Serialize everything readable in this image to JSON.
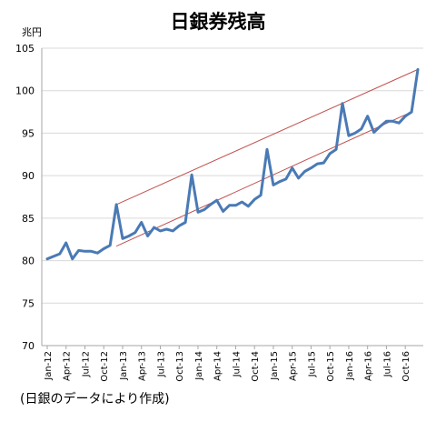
{
  "title": "日銀券残高",
  "unit_label": "兆円",
  "source_note": "(日銀のデータにより作成)",
  "chart_data": {
    "type": "line",
    "title": "日銀券残高",
    "ylabel": "兆円",
    "xlabel": "",
    "ylim": [
      70,
      105
    ],
    "yticks": [
      70,
      75,
      80,
      85,
      90,
      95,
      100,
      105
    ],
    "grid": true,
    "legend": "none",
    "x_tick_labels": [
      "Jan-12",
      "Apr-12",
      "Jul-12",
      "Oct-12",
      "Jan-13",
      "Apr-13",
      "Jul-13",
      "Oct-13",
      "Jan-14",
      "Apr-14",
      "Jul-14",
      "Oct-14",
      "Jan-15",
      "Apr-15",
      "Jul-15",
      "Oct-15",
      "Jan-16",
      "Apr-16",
      "Jul-16",
      "Oct-16"
    ],
    "x": [
      "Jan-12",
      "Feb-12",
      "Mar-12",
      "Apr-12",
      "May-12",
      "Jun-12",
      "Jul-12",
      "Aug-12",
      "Sep-12",
      "Oct-12",
      "Nov-12",
      "Dec-12",
      "Jan-13",
      "Feb-13",
      "Mar-13",
      "Apr-13",
      "May-13",
      "Jun-13",
      "Jul-13",
      "Aug-13",
      "Sep-13",
      "Oct-13",
      "Nov-13",
      "Dec-13",
      "Jan-14",
      "Feb-14",
      "Mar-14",
      "Apr-14",
      "May-14",
      "Jun-14",
      "Jul-14",
      "Aug-14",
      "Sep-14",
      "Oct-14",
      "Nov-14",
      "Dec-14",
      "Jan-15",
      "Feb-15",
      "Mar-15",
      "Apr-15",
      "May-15",
      "Jun-15",
      "Jul-15",
      "Aug-15",
      "Sep-15",
      "Oct-15",
      "Nov-15",
      "Dec-15",
      "Jan-16",
      "Feb-16",
      "Mar-16",
      "Apr-16",
      "May-16",
      "Jun-16",
      "Jul-16",
      "Aug-16",
      "Sep-16",
      "Oct-16",
      "Nov-16",
      "Dec-16"
    ],
    "series": [
      {
        "color": "#4a7ab5",
        "values": [
          80.2,
          80.5,
          80.8,
          82.1,
          80.2,
          81.2,
          81.1,
          81.1,
          80.9,
          81.4,
          81.8,
          86.6,
          82.6,
          82.9,
          83.3,
          84.5,
          82.9,
          83.9,
          83.5,
          83.7,
          83.5,
          84.1,
          84.5,
          90.1,
          85.7,
          86.0,
          86.6,
          87.1,
          85.8,
          86.5,
          86.5,
          86.9,
          86.4,
          87.2,
          87.7,
          93.1,
          88.9,
          89.3,
          89.6,
          90.9,
          89.7,
          90.5,
          90.9,
          91.4,
          91.5,
          92.6,
          93.1,
          98.5,
          94.7,
          95.0,
          95.5,
          97.0,
          95.1,
          95.8,
          96.4,
          96.4,
          96.2,
          97.0,
          97.5,
          102.5
        ]
      }
    ],
    "trend_lines": {
      "color": "#c0504d",
      "upper": {
        "from": [
          "Dec-12",
          86.6
        ],
        "to": [
          "Dec-16",
          102.5
        ]
      },
      "lower": {
        "from": [
          "Dec-12",
          81.7
        ],
        "to": [
          "Nov-16",
          97.5
        ]
      }
    }
  }
}
